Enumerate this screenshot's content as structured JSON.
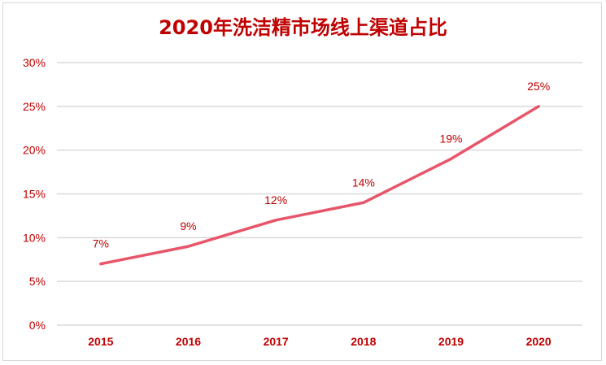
{
  "chart_data": {
    "type": "line",
    "title": "2020年洗洁精市场线上渠道占比",
    "categories": [
      "2015",
      "2016",
      "2017",
      "2018",
      "2019",
      "2020"
    ],
    "series": [
      {
        "values": [
          7,
          9,
          12,
          14,
          19,
          25
        ]
      }
    ],
    "data_labels": [
      "7%",
      "9%",
      "12%",
      "14%",
      "19%",
      "25%"
    ],
    "y_ticks": [
      "0%",
      "5%",
      "10%",
      "15%",
      "20%",
      "25%",
      "30%"
    ],
    "ylim": [
      0,
      30
    ],
    "grid": true,
    "legend": "none",
    "colors": {
      "line": "#e8556a",
      "text": "#c00000",
      "grid": "#d9d9d9"
    }
  }
}
